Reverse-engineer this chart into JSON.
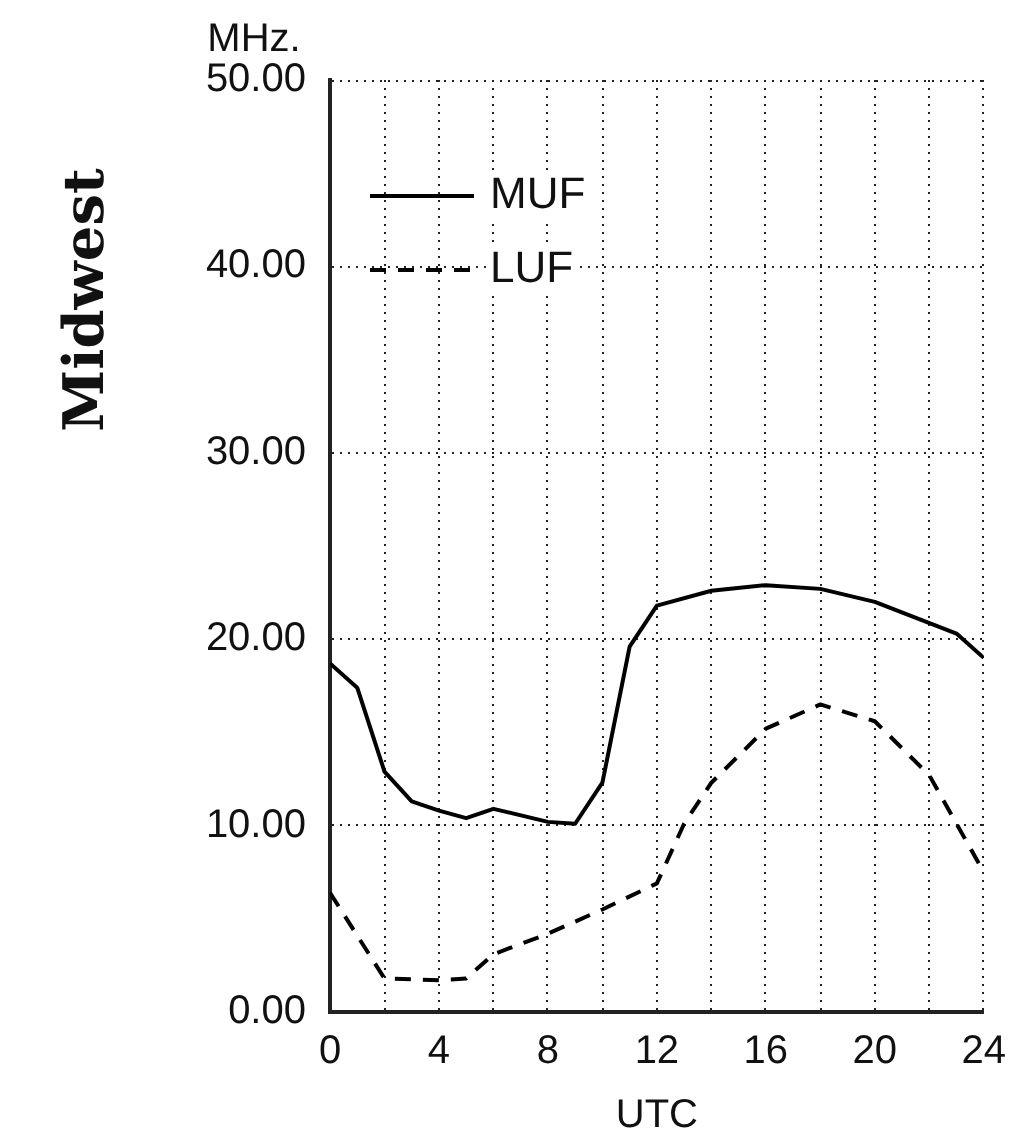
{
  "chart_data": {
    "type": "line",
    "title": "Midwest",
    "xlabel": "UTC",
    "ylabel": "MHz.",
    "xlim": [
      0,
      24
    ],
    "ylim": [
      0,
      50
    ],
    "xticks": [
      0,
      {
        "value": 2,
        "label": null
      },
      4,
      {
        "value": 6,
        "label": null
      },
      8,
      {
        "value": 10,
        "label": null
      },
      12,
      {
        "value": 14,
        "label": null
      },
      16,
      {
        "value": 18,
        "label": null
      },
      20,
      {
        "value": 22,
        "label": null
      },
      24
    ],
    "yticks": [
      {
        "value": 0,
        "label": "0.00"
      },
      {
        "value": 10,
        "label": "10.00"
      },
      {
        "value": 20,
        "label": "20.00"
      },
      {
        "value": 30,
        "label": "30.00"
      },
      {
        "value": 40,
        "label": "40.00"
      },
      {
        "value": 50,
        "label": "50.00"
      }
    ],
    "grid": true,
    "legend": "top left",
    "marker": "none",
    "series": [
      {
        "name": "MUF",
        "color": "#000000",
        "line_style": "solid",
        "x": [
          0,
          1,
          2,
          3,
          4,
          5,
          6,
          8,
          9,
          10,
          11,
          12,
          14,
          16,
          18,
          20,
          23,
          24
        ],
        "values": [
          18.7,
          17.4,
          12.9,
          11.3,
          10.8,
          10.4,
          10.9,
          10.2,
          10.1,
          12.3,
          19.6,
          21.8,
          22.6,
          22.9,
          22.7,
          22.0,
          20.3,
          19.0
        ]
      },
      {
        "name": "LUF",
        "color": "#000000",
        "line_style": "dashed",
        "x": [
          0,
          2,
          4,
          5,
          6,
          8,
          10,
          12,
          13,
          14,
          16,
          18,
          20,
          22,
          24
        ],
        "values": [
          6.4,
          1.8,
          1.7,
          1.8,
          3.1,
          4.2,
          5.5,
          6.9,
          10.1,
          12.3,
          15.2,
          16.5,
          15.6,
          12.7,
          7.5
        ]
      }
    ]
  }
}
